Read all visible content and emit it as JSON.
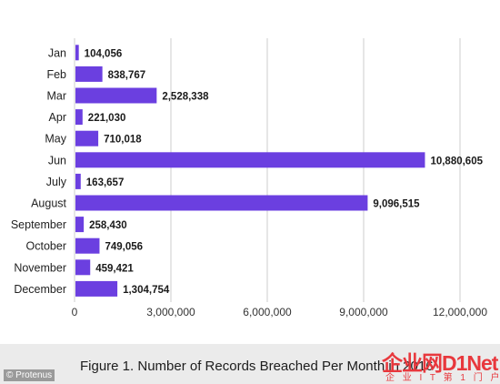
{
  "chart_data": {
    "type": "bar",
    "orientation": "horizontal",
    "categories": [
      "Jan",
      "Feb",
      "Mar",
      "Apr",
      "May",
      "Jun",
      "July",
      "August",
      "September",
      "October",
      "November",
      "December"
    ],
    "values": [
      104056,
      838767,
      2528338,
      221030,
      710018,
      10880605,
      163657,
      9096515,
      258430,
      749056,
      459421,
      1304754
    ],
    "value_labels": [
      "104,056",
      "838,767",
      "2,528,338",
      "221,030",
      "710,018",
      "10,880,605",
      "163,657",
      "9,096,515",
      "258,430",
      "749,056",
      "459,421",
      "1,304,754"
    ],
    "x_ticks": [
      0,
      3000000,
      6000000,
      9000000,
      12000000
    ],
    "x_tick_labels": [
      "0",
      "3,000,000",
      "6,000,000",
      "9,000,000",
      "12,000,000"
    ],
    "xlim": [
      0,
      12000000
    ],
    "title": "",
    "xlabel": "",
    "ylabel": "",
    "grid": true,
    "bar_color": "#6b3fe0",
    "grid_color": "#cccccc"
  },
  "caption": "Figure 1. Number of Records Breached Per Month in 2016",
  "credit": "© Protenus",
  "watermark": {
    "main": "企业网D1Net",
    "sub": "企 业 I T 第 1 门 户"
  }
}
